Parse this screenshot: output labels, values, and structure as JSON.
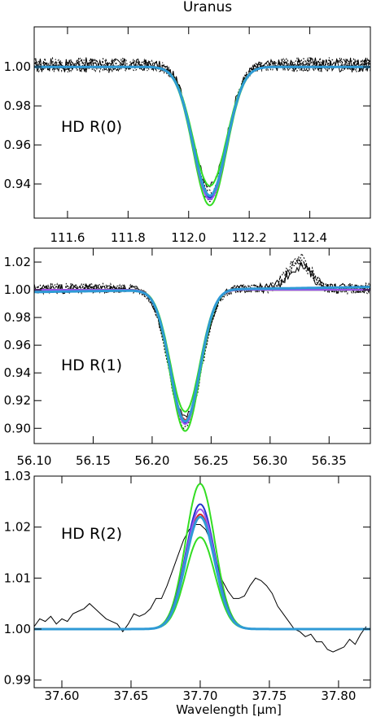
{
  "figure_title": "Uranus",
  "chart_data": [
    {
      "type": "line",
      "label": "HD R(0)",
      "xlim": [
        111.49,
        112.6
      ],
      "ylim": [
        0.9225,
        1.0205
      ],
      "xticks": [
        {
          "v": 111.6,
          "t": "111.6"
        },
        {
          "v": 111.8,
          "t": "111.8"
        },
        {
          "v": 112.0,
          "t": "112.0"
        },
        {
          "v": 112.2,
          "t": "112.2"
        },
        {
          "v": 112.4,
          "t": "112.4"
        }
      ],
      "yticks": [
        {
          "v": 0.94,
          "t": "0.94"
        },
        {
          "v": 0.96,
          "t": "0.96"
        },
        {
          "v": 0.98,
          "t": "0.98"
        },
        {
          "v": 1.0,
          "t": "1.00"
        }
      ],
      "line_center": 112.07,
      "line_sigma": 0.055,
      "observed": {
        "center": 112.07,
        "sigma": 0.055,
        "depths": [
          0.062,
          0.065,
          0.067,
          0.07
        ],
        "baseline": 1.001,
        "noise": 0.0035
      },
      "models": [
        {
          "color": "#33dd22",
          "depth": 0.071,
          "width": 2
        },
        {
          "color": "#33dd22",
          "depth": 0.061,
          "width": 2
        },
        {
          "color": "#2233cc",
          "depth": 0.067,
          "width": 2
        },
        {
          "color": "#dd2222",
          "depth": 0.066,
          "width": 2
        },
        {
          "color": "#9955ee",
          "depth": 0.068,
          "width": 2
        },
        {
          "color": "#2f9ad6",
          "depth": 0.066,
          "width": 3
        }
      ]
    },
    {
      "type": "line",
      "label": "HD R(1)",
      "xlim": [
        56.1,
        56.385
      ],
      "ylim": [
        0.889,
        1.03
      ],
      "xticks": [
        {
          "v": 56.1,
          "t": "56.10"
        },
        {
          "v": 56.15,
          "t": "56.15"
        },
        {
          "v": 56.2,
          "t": "56.20"
        },
        {
          "v": 56.25,
          "t": "56.25"
        },
        {
          "v": 56.3,
          "t": "56.30"
        },
        {
          "v": 56.35,
          "t": "56.35"
        }
      ],
      "yticks": [
        {
          "v": 0.9,
          "t": "0.90"
        },
        {
          "v": 0.92,
          "t": "0.92"
        },
        {
          "v": 0.94,
          "t": "0.94"
        },
        {
          "v": 0.96,
          "t": "0.96"
        },
        {
          "v": 0.98,
          "t": "0.98"
        },
        {
          "v": 1.0,
          "t": "1.00"
        },
        {
          "v": 1.02,
          "t": "1.02"
        }
      ],
      "observed": {
        "center": 56.228,
        "sigma": 0.0135,
        "depths": [
          0.092,
          0.095,
          0.097,
          0.1
        ],
        "baseline": 1.001,
        "noise": 0.0035,
        "bump": {
          "center": 56.325,
          "sigma": 0.01,
          "amp": 0.019
        }
      },
      "models": [
        {
          "color": "#33dd22",
          "depth": 0.102,
          "width": 2
        },
        {
          "color": "#33dd22",
          "depth": 0.088,
          "width": 2
        },
        {
          "color": "#2233cc",
          "depth": 0.096,
          "width": 2
        },
        {
          "color": "#dd2222",
          "depth": 0.094,
          "width": 2
        },
        {
          "color": "#9955ee",
          "depth": 0.097,
          "width": 2
        },
        {
          "color": "#2f9ad6",
          "depth": 0.095,
          "width": 3,
          "slope": 0.012
        }
      ],
      "model_center": 56.228,
      "model_sigma": 0.0125
    },
    {
      "type": "line",
      "label": "HD R(2)",
      "xlabel": "Wavelength [",
      "xlabel_unit": "μm",
      "xlabel_end": "]",
      "xlim": [
        37.58,
        37.823
      ],
      "ylim": [
        0.9885,
        1.03
      ],
      "xticks": [
        {
          "v": 37.6,
          "t": "37.60"
        },
        {
          "v": 37.65,
          "t": "37.65"
        },
        {
          "v": 37.7,
          "t": "37.70"
        },
        {
          "v": 37.75,
          "t": "37.75"
        },
        {
          "v": 37.8,
          "t": "37.80"
        }
      ],
      "yticks": [
        {
          "v": 0.99,
          "t": "0.99"
        },
        {
          "v": 1.0,
          "t": "1.00"
        },
        {
          "v": 1.01,
          "t": "1.01"
        },
        {
          "v": 1.02,
          "t": "1.02"
        },
        {
          "v": 1.03,
          "t": "1.03"
        }
      ],
      "model_center": 37.7,
      "model_sigma": 0.0105,
      "models": [
        {
          "color": "#33dd22",
          "amp": 0.0285,
          "width": 2
        },
        {
          "color": "#33dd22",
          "amp": 0.018,
          "width": 2
        },
        {
          "color": "#2233cc",
          "amp": 0.0245,
          "width": 2
        },
        {
          "color": "#dd2222",
          "amp": 0.0225,
          "width": 2
        },
        {
          "color": "#9955ee",
          "amp": 0.0235,
          "width": 2
        },
        {
          "color": "#2f9ad6",
          "amp": 0.022,
          "width": 3
        }
      ],
      "observed_x": [
        37.58,
        37.584,
        37.588,
        37.592,
        37.596,
        37.6,
        37.604,
        37.608,
        37.612,
        37.616,
        37.62,
        37.624,
        37.628,
        37.632,
        37.636,
        37.64,
        37.644,
        37.648,
        37.652,
        37.656,
        37.66,
        37.664,
        37.668,
        37.672,
        37.676,
        37.68,
        37.684,
        37.688,
        37.692,
        37.696,
        37.7,
        37.704,
        37.708,
        37.712,
        37.716,
        37.72,
        37.724,
        37.728,
        37.732,
        37.736,
        37.74,
        37.744,
        37.748,
        37.752,
        37.756,
        37.76,
        37.764,
        37.768,
        37.772,
        37.776,
        37.78,
        37.784,
        37.788,
        37.792,
        37.796,
        37.8,
        37.804,
        37.808,
        37.812,
        37.816,
        37.82
      ],
      "observed_y": [
        1.0005,
        1.002,
        1.0015,
        1.0025,
        1.001,
        1.002,
        1.0015,
        1.003,
        1.0035,
        1.004,
        1.005,
        1.004,
        1.003,
        1.002,
        1.0015,
        1.001,
        0.9995,
        1.001,
        1.003,
        1.0025,
        1.003,
        1.004,
        1.006,
        1.006,
        1.0085,
        1.0115,
        1.0145,
        1.0175,
        1.0195,
        1.0205,
        1.0205,
        1.0195,
        1.017,
        1.013,
        1.0095,
        1.0075,
        1.006,
        1.006,
        1.0065,
        1.0085,
        1.01,
        1.0095,
        1.0085,
        1.007,
        1.0045,
        1.003,
        1.0015,
        1.0,
        0.9995,
        0.9985,
        0.999,
        0.9975,
        0.9975,
        0.996,
        0.9955,
        0.996,
        0.9965,
        0.998,
        0.997,
        0.999,
        1.0005
      ]
    }
  ]
}
